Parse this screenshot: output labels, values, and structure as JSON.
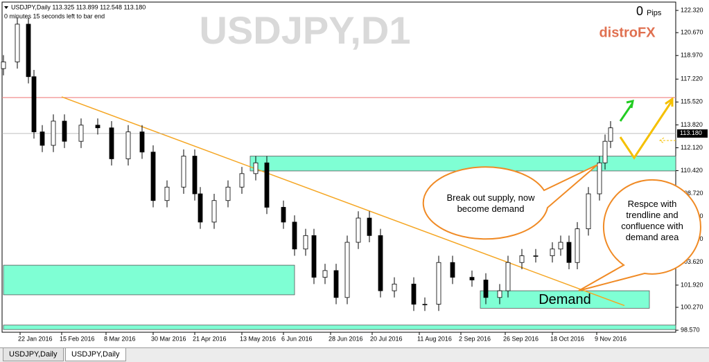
{
  "header": {
    "symbol_line": "USDJPY,Daily  113.325 113.899 112.548 113.180",
    "timer": "0 minutes 15 seconds left to bar end",
    "watermark": "USDJPY,D1",
    "brand": "distroFX",
    "pips_value": "0",
    "pips_label": "Pips"
  },
  "chart_data": {
    "type": "candlestick",
    "x": [
      0,
      5,
      9,
      11,
      14,
      18,
      22,
      28,
      34,
      39,
      45,
      50,
      54,
      59,
      65,
      69,
      71,
      76,
      81,
      86,
      91,
      95,
      101,
      105,
      109,
      112,
      116,
      120,
      124,
      128,
      132,
      136,
      141,
      148,
      152,
      157,
      162,
      169,
      174,
      179,
      182,
      187,
      192,
      198,
      201,
      204,
      207,
      211,
      215,
      217,
      219
    ],
    "open": [
      118.0,
      118.5,
      121.3,
      117.4,
      113.3,
      112.3,
      114.1,
      112.6,
      113.8,
      113.6,
      111.3,
      113.3,
      111.8,
      108.2,
      109.2,
      111.5,
      108.7,
      106.6,
      108.2,
      109.2,
      110.2,
      111.0,
      107.7,
      106.6,
      104.6,
      105.6,
      102.5,
      103.0,
      101.0,
      105.1,
      106.9,
      105.6,
      101.5,
      102.0,
      100.5,
      100.5,
      103.6,
      102.5,
      102.3,
      101.0,
      101.5,
      103.6,
      104.1,
      104.1,
      104.6,
      105.1,
      103.6,
      106.1,
      108.7,
      111.0,
      112.6
    ],
    "high": [
      119.0,
      121.8,
      121.8,
      117.9,
      113.8,
      114.6,
      114.6,
      114.3,
      114.3,
      114.1,
      113.8,
      113.8,
      112.3,
      109.7,
      112.0,
      112.0,
      109.2,
      108.7,
      109.7,
      110.7,
      111.5,
      111.5,
      108.2,
      107.1,
      106.1,
      106.1,
      103.5,
      103.5,
      105.6,
      107.4,
      107.4,
      106.1,
      102.5,
      102.5,
      101.0,
      104.1,
      104.1,
      103.0,
      102.8,
      102.0,
      104.1,
      104.6,
      104.6,
      105.1,
      105.6,
      105.6,
      106.6,
      109.2,
      111.5,
      113.1,
      114.1
    ],
    "low": [
      117.5,
      118.0,
      116.9,
      112.8,
      111.8,
      111.8,
      112.1,
      112.1,
      113.1,
      110.8,
      110.8,
      111.3,
      107.7,
      107.7,
      108.7,
      108.2,
      106.1,
      106.1,
      107.7,
      108.7,
      109.7,
      107.2,
      106.1,
      104.1,
      104.1,
      102.0,
      102.0,
      100.5,
      100.5,
      104.6,
      105.1,
      101.0,
      101.0,
      100.0,
      100.0,
      100.0,
      102.0,
      101.8,
      100.5,
      100.5,
      101.0,
      103.1,
      103.6,
      103.6,
      104.1,
      103.1,
      103.1,
      105.6,
      108.2,
      110.5,
      112.1
    ],
    "close": [
      118.5,
      121.3,
      117.4,
      113.3,
      112.3,
      114.1,
      112.6,
      113.8,
      113.6,
      111.3,
      113.3,
      111.8,
      108.2,
      109.2,
      111.5,
      108.7,
      106.6,
      108.2,
      109.2,
      110.2,
      111.0,
      107.7,
      106.6,
      104.6,
      105.6,
      102.5,
      103.0,
      101.0,
      105.1,
      106.9,
      105.6,
      101.5,
      102.0,
      100.5,
      100.5,
      103.6,
      102.5,
      102.3,
      101.0,
      101.5,
      103.6,
      104.1,
      104.1,
      104.6,
      105.1,
      103.6,
      106.1,
      108.7,
      111.0,
      112.6,
      113.6
    ],
    "xlim": [
      0,
      242.5
    ],
    "ylim": [
      98.42,
      122.94
    ],
    "xticks": [
      {
        "value": 6,
        "label": "22 Jan 2016"
      },
      {
        "value": 21,
        "label": "15 Feb 2016"
      },
      {
        "value": 37,
        "label": "8 Mar 2016"
      },
      {
        "value": 54,
        "label": "30 Mar 2016"
      },
      {
        "value": 69,
        "label": "21 Apr 2016"
      },
      {
        "value": 86,
        "label": "13 May 2016"
      },
      {
        "value": 101,
        "label": "6 Jun 2016"
      },
      {
        "value": 118,
        "label": "28 Jun 2016"
      },
      {
        "value": 133,
        "label": "20 Jul 2016"
      },
      {
        "value": 150,
        "label": "11 Aug 2016"
      },
      {
        "value": 165,
        "label": "2 Sep 2016"
      },
      {
        "value": 181,
        "label": "26 Sep 2016"
      },
      {
        "value": 198,
        "label": "18 Oct 2016"
      },
      {
        "value": 214,
        "label": "9 Nov 2016"
      }
    ],
    "yticks": [
      {
        "value": 122.32,
        "label": "122.320"
      },
      {
        "value": 120.67,
        "label": "120.670"
      },
      {
        "value": 118.97,
        "label": "118.970"
      },
      {
        "value": 117.22,
        "label": "117.220"
      },
      {
        "value": 115.52,
        "label": "115.520"
      },
      {
        "value": 113.82,
        "label": "113.820"
      },
      {
        "value": 112.12,
        "label": "112.120"
      },
      {
        "value": 110.42,
        "label": "110.420"
      },
      {
        "value": 108.72,
        "label": "108.720"
      },
      {
        "value": 107.02,
        "label": "107.020"
      },
      {
        "value": 105.32,
        "label": "105.320"
      },
      {
        "value": 103.62,
        "label": "103.620"
      },
      {
        "value": 101.92,
        "label": "101.920"
      },
      {
        "value": 100.27,
        "label": "100.270"
      },
      {
        "value": 98.57,
        "label": "98.570"
      }
    ],
    "current_price": {
      "value": 113.18,
      "label": "113.180"
    },
    "resistance": 115.85,
    "trendline": {
      "x": [
        21,
        224
      ],
      "y": [
        115.9,
        100.4
      ]
    },
    "zones": [
      {
        "x": [
          89,
          242.5
        ],
        "y": [
          110.4,
          111.5
        ],
        "color": "#7fffd4"
      },
      {
        "x": [
          172,
          233
        ],
        "y": [
          100.2,
          101.5
        ],
        "color": "#7fffd4",
        "label": "Demand"
      },
      {
        "x": [
          0,
          105
        ],
        "y": [
          101.2,
          103.4
        ],
        "color": "#7fffd4"
      },
      {
        "x": [
          0,
          242.5
        ],
        "y": [
          98.62,
          98.95
        ],
        "color": "#7fffd4"
      }
    ],
    "callouts": [
      "Break out supply, now become demand",
      "Respce with trendline and confluence with demand area"
    ]
  },
  "tabs": [
    "USDJPY,Daily",
    "USDJPY,Daily"
  ]
}
